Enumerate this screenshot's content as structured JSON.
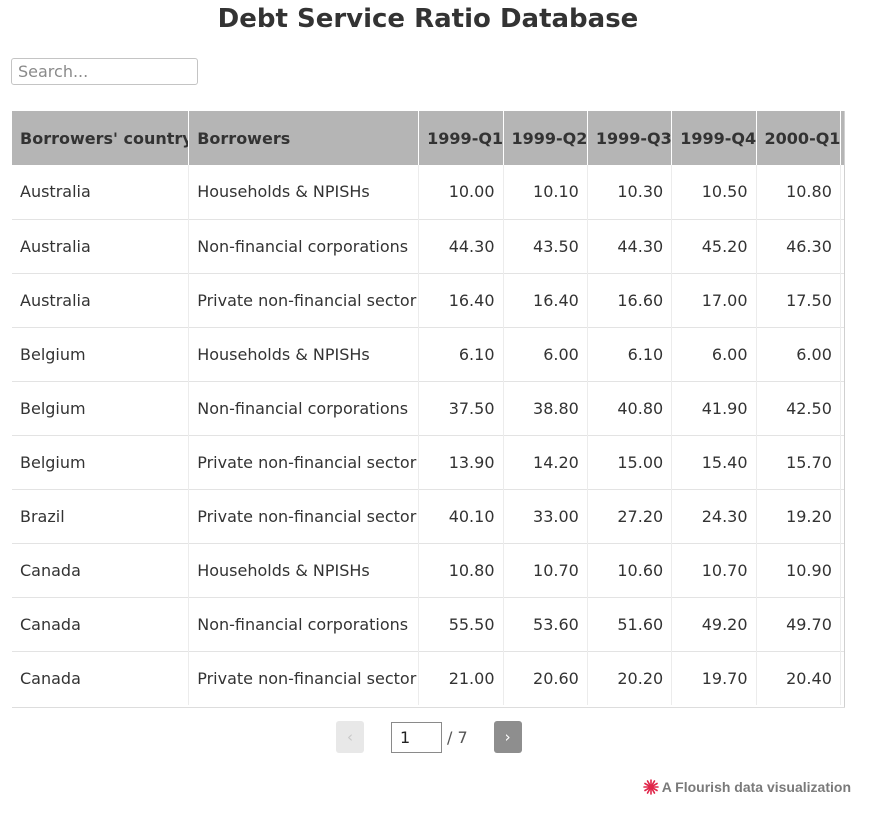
{
  "title": "Debt Service Ratio Database",
  "search": {
    "placeholder": "Search..."
  },
  "table": {
    "columns": [
      "Borrowers' country",
      "Borrowers",
      "1999-Q1",
      "1999-Q2",
      "1999-Q3",
      "1999-Q4",
      "2000-Q1"
    ],
    "rows": [
      [
        "Australia",
        "Households & NPISHs",
        "10.00",
        "10.10",
        "10.30",
        "10.50",
        "10.80"
      ],
      [
        "Australia",
        "Non-financial corporations",
        "44.30",
        "43.50",
        "44.30",
        "45.20",
        "46.30"
      ],
      [
        "Australia",
        "Private non-financial sector",
        "16.40",
        "16.40",
        "16.60",
        "17.00",
        "17.50"
      ],
      [
        "Belgium",
        "Households & NPISHs",
        "6.10",
        "6.00",
        "6.10",
        "6.00",
        "6.00"
      ],
      [
        "Belgium",
        "Non-financial corporations",
        "37.50",
        "38.80",
        "40.80",
        "41.90",
        "42.50"
      ],
      [
        "Belgium",
        "Private non-financial sector",
        "13.90",
        "14.20",
        "15.00",
        "15.40",
        "15.70"
      ],
      [
        "Brazil",
        "Private non-financial sector",
        "40.10",
        "33.00",
        "27.20",
        "24.30",
        "19.20"
      ],
      [
        "Canada",
        "Households & NPISHs",
        "10.80",
        "10.70",
        "10.60",
        "10.70",
        "10.90"
      ],
      [
        "Canada",
        "Non-financial corporations",
        "55.50",
        "53.60",
        "51.60",
        "49.20",
        "49.70"
      ],
      [
        "Canada",
        "Private non-financial sector",
        "21.00",
        "20.60",
        "20.20",
        "19.70",
        "20.40"
      ]
    ]
  },
  "pagination": {
    "prev_label": "‹",
    "next_label": "›",
    "current_page": "1",
    "total_label": "/ 7"
  },
  "credit": {
    "text": "A Flourish data visualization",
    "logo_color": "#e0264a"
  }
}
